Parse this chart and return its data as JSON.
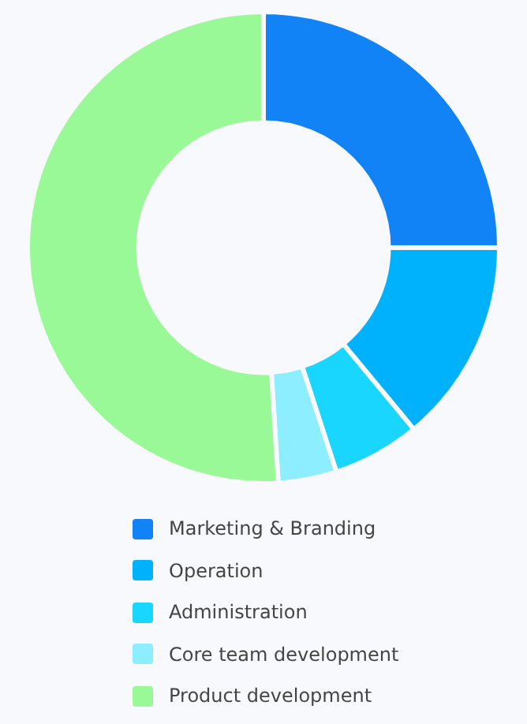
{
  "chart_data": {
    "type": "donut",
    "categories": [
      "Marketing & Branding",
      "Operation",
      "Administration",
      "Core team development",
      "Product development"
    ],
    "values": [
      25,
      14,
      6,
      4,
      51
    ],
    "colors": [
      "#1282f7",
      "#00b2fb",
      "#18d6fd",
      "#8ceefe",
      "#98f996"
    ],
    "legend": "bottom"
  }
}
